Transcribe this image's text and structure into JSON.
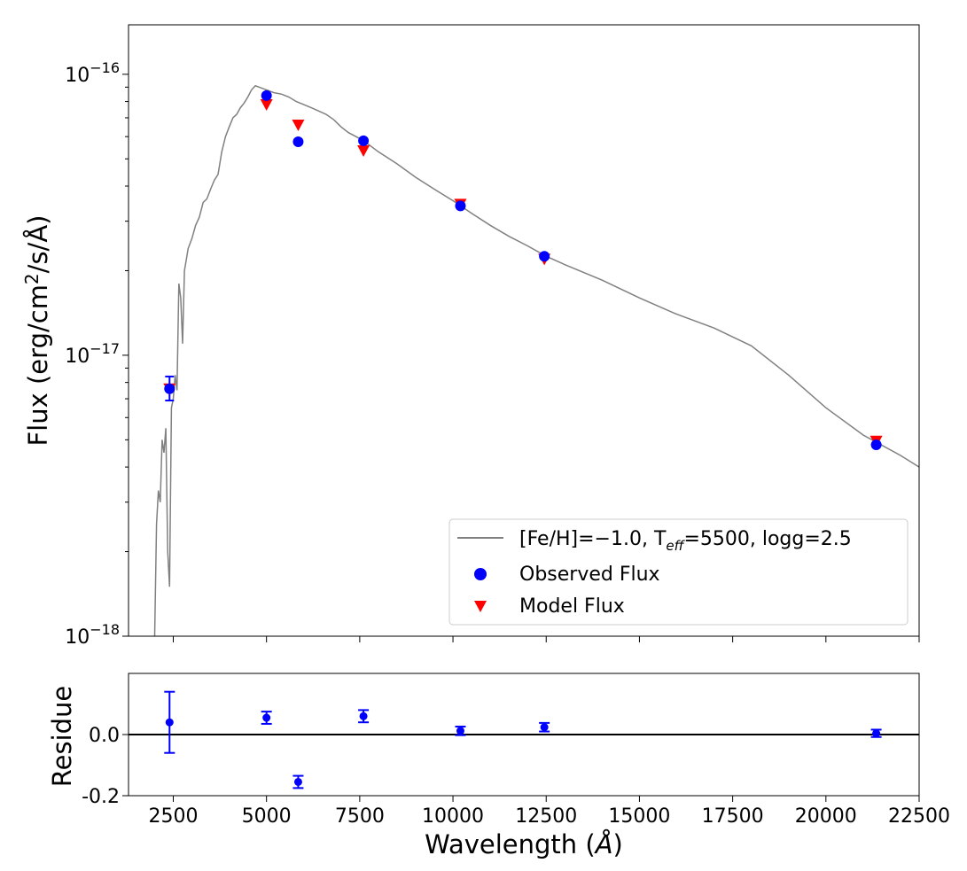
{
  "chart_data": [
    {
      "type": "line",
      "panel": "sed",
      "ylabel": "Flux (erg/cm²/s/Å)",
      "yscale": "log",
      "ylim": [
        1e-18,
        1.5e-16
      ],
      "xlim": [
        1300,
        22500
      ],
      "ytick_values": [
        1e-18,
        1e-17,
        1e-16
      ],
      "ytick_labels": [
        {
          "base": "10",
          "exp": "−18"
        },
        {
          "base": "10",
          "exp": "−17"
        },
        {
          "base": "10",
          "exp": "−16"
        }
      ],
      "legend_position": "lower right",
      "series": [
        {
          "kind": "line",
          "color": "#808080",
          "legend": {
            "a": "[Fe/H]=−1.0, T",
            "sub": "eff",
            "b": "=5500, logg=2.5"
          },
          "points": [
            [
              2000,
              1e-18
            ],
            [
              2050,
              2.5e-18
            ],
            [
              2100,
              3.3e-18
            ],
            [
              2150,
              3e-18
            ],
            [
              2200,
              5e-18
            ],
            [
              2250,
              4.5e-18
            ],
            [
              2300,
              5.5e-18
            ],
            [
              2350,
              2e-18
            ],
            [
              2400,
              1.5e-18
            ],
            [
              2450,
              6.5e-18
            ],
            [
              2500,
              7e-18
            ],
            [
              2550,
              8.5e-18
            ],
            [
              2600,
              7.5e-18
            ],
            [
              2650,
              1.8e-17
            ],
            [
              2700,
              1.6e-17
            ],
            [
              2750,
              1.1e-17
            ],
            [
              2800,
              2e-17
            ],
            [
              2900,
              2.4e-17
            ],
            [
              3000,
              2.6e-17
            ],
            [
              3100,
              2.9e-17
            ],
            [
              3200,
              3.1e-17
            ],
            [
              3300,
              3.5e-17
            ],
            [
              3400,
              3.6e-17
            ],
            [
              3500,
              3.9e-17
            ],
            [
              3600,
              4.2e-17
            ],
            [
              3700,
              4.4e-17
            ],
            [
              3800,
              5.3e-17
            ],
            [
              3900,
              6e-17
            ],
            [
              4000,
              6.5e-17
            ],
            [
              4100,
              7e-17
            ],
            [
              4200,
              7.2e-17
            ],
            [
              4300,
              7.6e-17
            ],
            [
              4400,
              7.9e-17
            ],
            [
              4500,
              8.3e-17
            ],
            [
              4600,
              8.8e-17
            ],
            [
              4700,
              9.1e-17
            ],
            [
              4800,
              9e-17
            ],
            [
              4900,
              8.9e-17
            ],
            [
              5000,
              8.8e-17
            ],
            [
              5200,
              8.6e-17
            ],
            [
              5400,
              8.5e-17
            ],
            [
              5600,
              8.3e-17
            ],
            [
              5800,
              8e-17
            ],
            [
              6000,
              7.8e-17
            ],
            [
              6200,
              7.6e-17
            ],
            [
              6400,
              7.4e-17
            ],
            [
              6600,
              7.2e-17
            ],
            [
              6800,
              6.9e-17
            ],
            [
              7000,
              6.5e-17
            ],
            [
              7200,
              6.2e-17
            ],
            [
              7400,
              6e-17
            ],
            [
              7600,
              5.8e-17
            ],
            [
              8000,
              5.3e-17
            ],
            [
              8500,
              4.8e-17
            ],
            [
              9000,
              4.3e-17
            ],
            [
              9500,
              3.9e-17
            ],
            [
              10000,
              3.55e-17
            ],
            [
              10500,
              3.2e-17
            ],
            [
              11000,
              2.9e-17
            ],
            [
              11500,
              2.65e-17
            ],
            [
              12000,
              2.45e-17
            ],
            [
              12500,
              2.25e-17
            ],
            [
              13000,
              2.1e-17
            ],
            [
              14000,
              1.85e-17
            ],
            [
              15000,
              1.6e-17
            ],
            [
              16000,
              1.4e-17
            ],
            [
              17000,
              1.25e-17
            ],
            [
              18000,
              1.08e-17
            ],
            [
              19000,
              8.5e-18
            ],
            [
              20000,
              6.5e-18
            ],
            [
              21000,
              5.2e-18
            ],
            [
              22000,
              4.4e-18
            ],
            [
              22500,
              4e-18
            ]
          ]
        },
        {
          "kind": "scatter",
          "marker": "circle",
          "color": "#0000ff",
          "legend": "Observed Flux",
          "points": [
            {
              "x": 2400,
              "y": 7.6e-18,
              "yerr_lo": 6.9e-18,
              "yerr_hi": 8.4e-18
            },
            {
              "x": 5000,
              "y": 8.4e-17
            },
            {
              "x": 5850,
              "y": 5.75e-17
            },
            {
              "x": 7600,
              "y": 5.8e-17
            },
            {
              "x": 10200,
              "y": 3.4e-17
            },
            {
              "x": 12450,
              "y": 2.25e-17
            },
            {
              "x": 21350,
              "y": 4.8e-18
            }
          ]
        },
        {
          "kind": "scatter",
          "marker": "triangle-down",
          "color": "#ff0000",
          "legend": "Model Flux",
          "points": [
            {
              "x": 2400,
              "y": 7.6e-18
            },
            {
              "x": 5000,
              "y": 7.8e-17
            },
            {
              "x": 5850,
              "y": 6.6e-17
            },
            {
              "x": 7600,
              "y": 5.35e-17
            },
            {
              "x": 10200,
              "y": 3.45e-17
            },
            {
              "x": 12450,
              "y": 2.2e-17
            },
            {
              "x": 21350,
              "y": 4.95e-18
            }
          ]
        }
      ]
    },
    {
      "type": "scatter",
      "panel": "residue",
      "xlabel": "Wavelength (Å)",
      "ylabel": "Residue",
      "xlim": [
        1300,
        22500
      ],
      "ylim": [
        -0.2,
        0.2
      ],
      "xtick_values": [
        2500,
        5000,
        7500,
        10000,
        12500,
        15000,
        17500,
        20000,
        22500
      ],
      "xtick_labels": [
        "2500",
        "5000",
        "7500",
        "10000",
        "12500",
        "15000",
        "17500",
        "20000",
        "22500"
      ],
      "ytick_values": [
        0.0,
        -0.2
      ],
      "ytick_labels": [
        "0.0",
        "-0.2"
      ],
      "zero_line": true,
      "color": "#0000ff",
      "points": [
        {
          "x": 2400,
          "y": 0.04,
          "err": 0.1
        },
        {
          "x": 5000,
          "y": 0.055,
          "err": 0.02
        },
        {
          "x": 5850,
          "y": -0.155,
          "err": 0.02
        },
        {
          "x": 7600,
          "y": 0.06,
          "err": 0.02
        },
        {
          "x": 10200,
          "y": 0.012,
          "err": 0.014
        },
        {
          "x": 12450,
          "y": 0.024,
          "err": 0.014
        },
        {
          "x": 21350,
          "y": 0.004,
          "err": 0.012
        }
      ]
    }
  ]
}
